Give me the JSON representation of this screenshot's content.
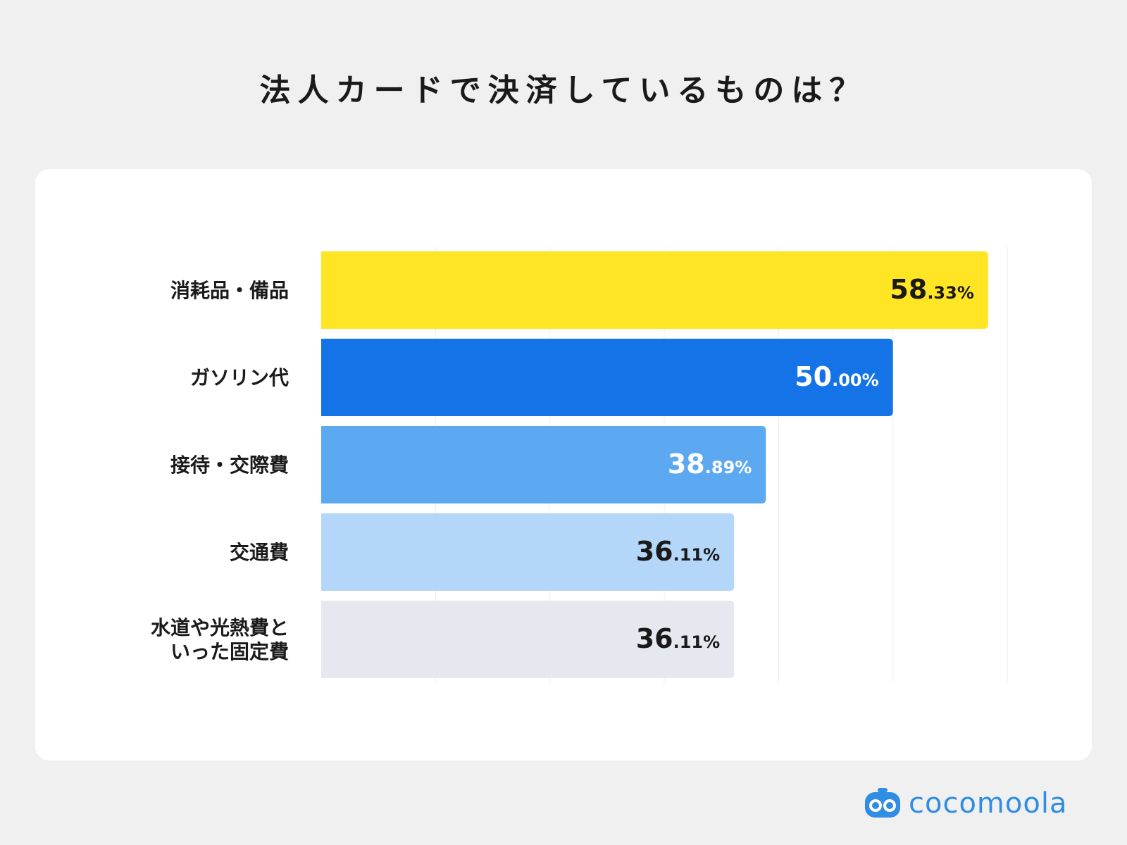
{
  "chart_data": {
    "type": "bar",
    "orientation": "horizontal",
    "title": "法人カードで決済しているものは？",
    "categories": [
      "消耗品・備品",
      "ガソリン代",
      "接待・交際費",
      "交通費",
      "水道や光熱費といった固定費"
    ],
    "category_lines": [
      [
        "消耗品・備品"
      ],
      [
        "ガソリン代"
      ],
      [
        "接待・交際費"
      ],
      [
        "交通費"
      ],
      [
        "水道や光熱費と",
        "いった固定費"
      ]
    ],
    "values": [
      58.33,
      50.0,
      38.89,
      36.11,
      36.11
    ],
    "value_labels": [
      {
        "int": "58",
        "dec": ".33%"
      },
      {
        "int": "50",
        "dec": ".00%"
      },
      {
        "int": "38",
        "dec": ".89%"
      },
      {
        "int": "36",
        "dec": ".11%"
      },
      {
        "int": "36",
        "dec": ".11%"
      }
    ],
    "bar_colors": [
      "#ffe523",
      "#1473e6",
      "#5ca9f2",
      "#b4d6f8",
      "#e5e9ef"
    ],
    "label_colors": [
      "#1a1a1a",
      "#ffffff",
      "#ffffff",
      "#1a1a1a",
      "#1a1a1a"
    ],
    "xlim": [
      0,
      60
    ],
    "grid": true,
    "xlabel": "",
    "ylabel": ""
  },
  "brand": {
    "name": "cocomoola",
    "color": "#2f8de4",
    "icon": "robot-face-icon"
  }
}
